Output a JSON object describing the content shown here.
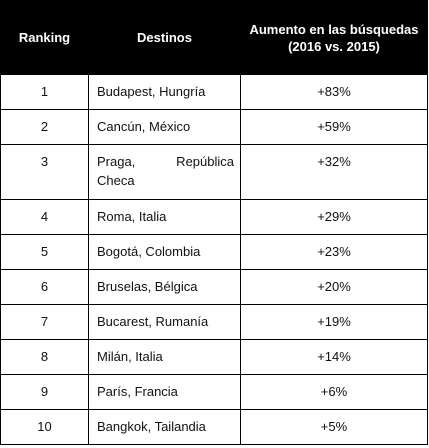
{
  "table": {
    "headers": {
      "ranking": "Ranking",
      "destinos": "Destinos",
      "aumento": "Aumento en las búsquedas (2016 vs. 2015)"
    },
    "rows": [
      {
        "rank": "1",
        "destination": "Budapest, Hungría",
        "increase": "+83%"
      },
      {
        "rank": "2",
        "destination": "Cancún, México",
        "increase": "+59%"
      },
      {
        "rank": "3",
        "destination": "Praga, República Checa",
        "increase": "+32%"
      },
      {
        "rank": "4",
        "destination": "Roma, Italia",
        "increase": "+29%"
      },
      {
        "rank": "5",
        "destination": "Bogotá, Colombia",
        "increase": "+23%"
      },
      {
        "rank": "6",
        "destination": "Bruselas, Bélgica",
        "increase": "+20%"
      },
      {
        "rank": "7",
        "destination": "Bucarest, Rumanía",
        "increase": "+19%"
      },
      {
        "rank": "8",
        "destination": "Milán, Italia",
        "increase": "+14%"
      },
      {
        "rank": "9",
        "destination": "París, Francia",
        "increase": "+6%"
      },
      {
        "rank": "10",
        "destination": "Bangkok, Tailandia",
        "increase": "+5%"
      }
    ]
  }
}
